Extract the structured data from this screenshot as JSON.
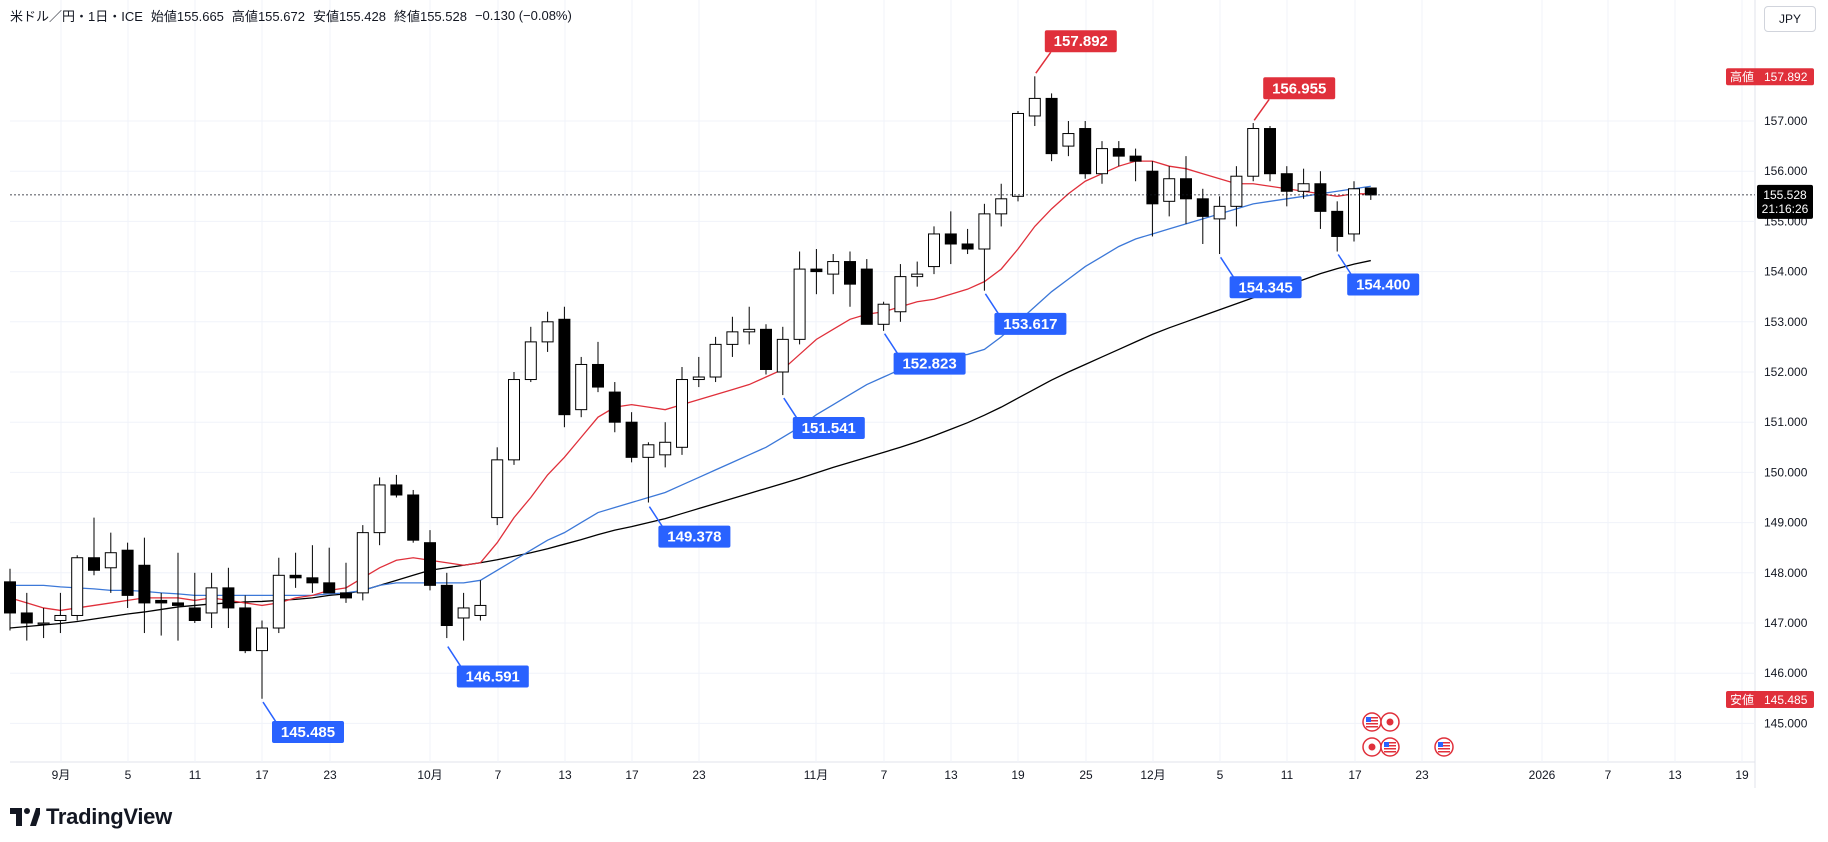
{
  "header": {
    "symbol": "米ドル／円・1日・ICE",
    "open_label": "始値",
    "open": "155.665",
    "high_label": "高値",
    "high": "155.672",
    "low_label": "安値",
    "low": "155.428",
    "close_label": "終値",
    "close": "155.528",
    "change": "−0.130 (−0.08%)"
  },
  "currency_button": "JPY",
  "branding": {
    "name": "TradingView"
  },
  "chart_data": {
    "type": "candlestick",
    "x_axis_labels": [
      "9月",
      "5",
      "11",
      "17",
      "23",
      "10月",
      "7",
      "13",
      "17",
      "23",
      "11月",
      "7",
      "13",
      "19",
      "25",
      "12月",
      "5",
      "11",
      "17",
      "23",
      "2026",
      "7",
      "13",
      "19"
    ],
    "y_ticks": [
      "157.000",
      "156.000",
      "155.000",
      "154.000",
      "153.000",
      "152.000",
      "151.000",
      "150.000",
      "149.000",
      "148.000",
      "147.000",
      "146.000",
      "145.000"
    ],
    "current_price": "155.528",
    "countdown": "21:16:26",
    "axis_high_label": "高値",
    "axis_high_value": "157.892",
    "axis_low_label": "安値",
    "axis_low_value": "145.485",
    "colors": {
      "up_body": "#ffffff",
      "down_body": "#000000",
      "wick": "#000000",
      "ma_short": "#e0303b",
      "ma_mid": "#3c78d8",
      "ma_long": "#000000",
      "callout_high": "#e0303b",
      "callout_low": "#2962ff"
    },
    "candles": [
      {
        "o": 147.82,
        "h": 148.08,
        "l": 146.85,
        "c": 147.2
      },
      {
        "o": 147.2,
        "h": 147.6,
        "l": 146.65,
        "c": 147.0
      },
      {
        "o": 147.0,
        "h": 147.3,
        "l": 146.7,
        "c": 147.0
      },
      {
        "o": 147.05,
        "h": 147.6,
        "l": 146.8,
        "c": 147.15
      },
      {
        "o": 147.15,
        "h": 148.35,
        "l": 147.05,
        "c": 148.3
      },
      {
        "o": 148.3,
        "h": 149.1,
        "l": 147.95,
        "c": 148.05
      },
      {
        "o": 148.1,
        "h": 148.8,
        "l": 147.6,
        "c": 148.4
      },
      {
        "o": 148.45,
        "h": 148.6,
        "l": 147.3,
        "c": 147.55
      },
      {
        "o": 148.15,
        "h": 148.7,
        "l": 146.8,
        "c": 147.4
      },
      {
        "o": 147.45,
        "h": 147.6,
        "l": 146.75,
        "c": 147.4
      },
      {
        "o": 147.4,
        "h": 148.4,
        "l": 146.65,
        "c": 147.35
      },
      {
        "o": 147.3,
        "h": 148.0,
        "l": 147.0,
        "c": 147.05
      },
      {
        "o": 147.2,
        "h": 148.0,
        "l": 146.9,
        "c": 147.7
      },
      {
        "o": 147.7,
        "h": 148.1,
        "l": 146.9,
        "c": 147.3
      },
      {
        "o": 147.3,
        "h": 147.55,
        "l": 146.4,
        "c": 146.45
      },
      {
        "o": 146.45,
        "h": 147.05,
        "l": 145.49,
        "c": 146.9
      },
      {
        "o": 146.9,
        "h": 148.3,
        "l": 146.8,
        "c": 147.95
      },
      {
        "o": 147.95,
        "h": 148.4,
        "l": 147.7,
        "c": 147.9
      },
      {
        "o": 147.9,
        "h": 148.55,
        "l": 147.6,
        "c": 147.8
      },
      {
        "o": 147.8,
        "h": 148.5,
        "l": 147.6,
        "c": 147.6
      },
      {
        "o": 147.6,
        "h": 148.2,
        "l": 147.4,
        "c": 147.5
      },
      {
        "o": 147.6,
        "h": 148.95,
        "l": 147.45,
        "c": 148.8
      },
      {
        "o": 148.8,
        "h": 149.9,
        "l": 148.55,
        "c": 149.75
      },
      {
        "o": 149.75,
        "h": 149.95,
        "l": 149.5,
        "c": 149.55
      },
      {
        "o": 149.55,
        "h": 149.65,
        "l": 148.6,
        "c": 148.65
      },
      {
        "o": 148.6,
        "h": 148.85,
        "l": 147.65,
        "c": 147.75
      },
      {
        "o": 147.75,
        "h": 148.0,
        "l": 146.7,
        "c": 146.95
      },
      {
        "o": 147.1,
        "h": 147.6,
        "l": 146.65,
        "c": 147.3
      },
      {
        "o": 147.15,
        "h": 147.85,
        "l": 147.05,
        "c": 147.35
      },
      {
        "o": 149.1,
        "h": 150.5,
        "l": 148.95,
        "c": 150.25
      },
      {
        "o": 150.25,
        "h": 152.0,
        "l": 150.15,
        "c": 151.85
      },
      {
        "o": 151.85,
        "h": 152.9,
        "l": 151.8,
        "c": 152.6
      },
      {
        "o": 152.6,
        "h": 153.2,
        "l": 152.4,
        "c": 153.0
      },
      {
        "o": 153.05,
        "h": 153.3,
        "l": 150.9,
        "c": 151.15
      },
      {
        "o": 151.25,
        "h": 152.3,
        "l": 151.1,
        "c": 152.15
      },
      {
        "o": 152.15,
        "h": 152.6,
        "l": 151.6,
        "c": 151.7
      },
      {
        "o": 151.6,
        "h": 151.8,
        "l": 150.8,
        "c": 151.0
      },
      {
        "o": 151.0,
        "h": 151.2,
        "l": 150.2,
        "c": 150.3
      },
      {
        "o": 150.3,
        "h": 150.6,
        "l": 149.4,
        "c": 150.55
      },
      {
        "o": 150.35,
        "h": 151.0,
        "l": 150.1,
        "c": 150.6
      },
      {
        "o": 150.5,
        "h": 152.1,
        "l": 150.35,
        "c": 151.85
      },
      {
        "o": 151.85,
        "h": 152.3,
        "l": 151.7,
        "c": 151.9
      },
      {
        "o": 151.9,
        "h": 152.7,
        "l": 151.8,
        "c": 152.55
      },
      {
        "o": 152.55,
        "h": 153.1,
        "l": 152.3,
        "c": 152.8
      },
      {
        "o": 152.8,
        "h": 153.3,
        "l": 152.55,
        "c": 152.85
      },
      {
        "o": 152.85,
        "h": 152.95,
        "l": 151.95,
        "c": 152.05
      },
      {
        "o": 152.0,
        "h": 152.9,
        "l": 151.54,
        "c": 152.65
      },
      {
        "o": 152.65,
        "h": 154.4,
        "l": 152.55,
        "c": 154.05
      },
      {
        "o": 154.05,
        "h": 154.45,
        "l": 153.55,
        "c": 154.0
      },
      {
        "o": 153.95,
        "h": 154.35,
        "l": 153.55,
        "c": 154.2
      },
      {
        "o": 154.2,
        "h": 154.4,
        "l": 153.3,
        "c": 153.75
      },
      {
        "o": 154.05,
        "h": 154.25,
        "l": 153.0,
        "c": 152.95
      },
      {
        "o": 152.95,
        "h": 153.4,
        "l": 152.82,
        "c": 153.35
      },
      {
        "o": 153.2,
        "h": 154.15,
        "l": 153.0,
        "c": 153.9
      },
      {
        "o": 153.9,
        "h": 154.2,
        "l": 153.7,
        "c": 153.95
      },
      {
        "o": 154.1,
        "h": 154.9,
        "l": 153.95,
        "c": 154.75
      },
      {
        "o": 154.75,
        "h": 155.2,
        "l": 154.15,
        "c": 154.55
      },
      {
        "o": 154.55,
        "h": 154.85,
        "l": 154.35,
        "c": 154.45
      },
      {
        "o": 154.45,
        "h": 155.35,
        "l": 153.62,
        "c": 155.15
      },
      {
        "o": 155.15,
        "h": 155.75,
        "l": 154.9,
        "c": 155.45
      },
      {
        "o": 155.5,
        "h": 157.2,
        "l": 155.4,
        "c": 157.15
      },
      {
        "o": 157.1,
        "h": 157.89,
        "l": 156.9,
        "c": 157.45
      },
      {
        "o": 157.45,
        "h": 157.55,
        "l": 156.2,
        "c": 156.35
      },
      {
        "o": 156.5,
        "h": 157.0,
        "l": 156.3,
        "c": 156.75
      },
      {
        "o": 156.85,
        "h": 157.0,
        "l": 155.85,
        "c": 155.95
      },
      {
        "o": 155.95,
        "h": 156.6,
        "l": 155.75,
        "c": 156.45
      },
      {
        "o": 156.45,
        "h": 156.6,
        "l": 156.1,
        "c": 156.3
      },
      {
        "o": 156.3,
        "h": 156.45,
        "l": 155.8,
        "c": 156.2
      },
      {
        "o": 156.0,
        "h": 156.2,
        "l": 154.7,
        "c": 155.35
      },
      {
        "o": 155.4,
        "h": 156.1,
        "l": 155.1,
        "c": 155.85
      },
      {
        "o": 155.85,
        "h": 156.3,
        "l": 154.95,
        "c": 155.45
      },
      {
        "o": 155.45,
        "h": 155.65,
        "l": 154.55,
        "c": 155.1
      },
      {
        "o": 155.05,
        "h": 155.5,
        "l": 154.35,
        "c": 155.3
      },
      {
        "o": 155.3,
        "h": 156.1,
        "l": 154.9,
        "c": 155.9
      },
      {
        "o": 155.9,
        "h": 156.96,
        "l": 155.8,
        "c": 156.85
      },
      {
        "o": 156.85,
        "h": 156.9,
        "l": 155.8,
        "c": 155.95
      },
      {
        "o": 155.95,
        "h": 156.1,
        "l": 155.3,
        "c": 155.6
      },
      {
        "o": 155.6,
        "h": 156.05,
        "l": 155.45,
        "c": 155.75
      },
      {
        "o": 155.75,
        "h": 156.0,
        "l": 154.85,
        "c": 155.2
      },
      {
        "o": 155.2,
        "h": 155.4,
        "l": 154.4,
        "c": 154.7
      },
      {
        "o": 154.75,
        "h": 155.8,
        "l": 154.6,
        "c": 155.65
      },
      {
        "o": 155.665,
        "h": 155.672,
        "l": 155.428,
        "c": 155.528
      }
    ],
    "ma_short": [
      147.5,
      147.4,
      147.3,
      147.25,
      147.3,
      147.35,
      147.4,
      147.45,
      147.5,
      147.5,
      147.5,
      147.45,
      147.5,
      147.45,
      147.4,
      147.35,
      147.4,
      147.5,
      147.55,
      147.65,
      147.7,
      147.9,
      148.1,
      148.25,
      148.3,
      148.25,
      148.2,
      148.15,
      148.2,
      148.6,
      149.1,
      149.5,
      149.95,
      150.3,
      150.7,
      151.1,
      151.3,
      151.35,
      151.3,
      151.25,
      151.35,
      151.45,
      151.55,
      151.65,
      151.75,
      151.9,
      152.05,
      152.35,
      152.65,
      152.85,
      153.05,
      153.15,
      153.2,
      153.3,
      153.4,
      153.45,
      153.55,
      153.65,
      153.8,
      154.05,
      154.45,
      154.9,
      155.25,
      155.55,
      155.8,
      155.95,
      156.1,
      156.2,
      156.2,
      156.1,
      156.05,
      155.95,
      155.85,
      155.75,
      155.75,
      155.7,
      155.65,
      155.6,
      155.55,
      155.5,
      155.55,
      155.55
    ],
    "ma_mid": [
      147.75,
      147.75,
      147.75,
      147.72,
      147.7,
      147.68,
      147.65,
      147.65,
      147.63,
      147.6,
      147.58,
      147.55,
      147.55,
      147.55,
      147.55,
      147.55,
      147.55,
      147.55,
      147.55,
      147.58,
      147.6,
      147.65,
      147.75,
      147.8,
      147.8,
      147.8,
      147.8,
      147.8,
      147.85,
      148.05,
      148.25,
      148.45,
      148.65,
      148.8,
      149.0,
      149.2,
      149.3,
      149.4,
      149.5,
      149.6,
      149.75,
      149.9,
      150.05,
      150.2,
      150.35,
      150.5,
      150.7,
      150.9,
      151.15,
      151.35,
      151.55,
      151.75,
      151.9,
      152.05,
      152.15,
      152.25,
      152.3,
      152.35,
      152.45,
      152.7,
      153.0,
      153.3,
      153.6,
      153.85,
      154.1,
      154.3,
      154.5,
      154.65,
      154.75,
      154.85,
      154.95,
      155.05,
      155.15,
      155.25,
      155.35,
      155.4,
      155.45,
      155.5,
      155.55,
      155.6,
      155.65,
      155.7
    ],
    "ma_long": [
      146.9,
      146.93,
      146.96,
      146.99,
      147.03,
      147.08,
      147.13,
      147.18,
      147.22,
      147.27,
      147.32,
      147.35,
      147.38,
      147.4,
      147.42,
      147.43,
      147.45,
      147.47,
      147.5,
      147.55,
      147.58,
      147.65,
      147.75,
      147.85,
      147.95,
      148.05,
      148.1,
      148.15,
      148.2,
      148.26,
      148.33,
      148.4,
      148.48,
      148.57,
      148.66,
      148.76,
      148.85,
      148.92,
      149.0,
      149.08,
      149.18,
      149.28,
      149.38,
      149.48,
      149.58,
      149.68,
      149.78,
      149.88,
      149.99,
      150.1,
      150.2,
      150.3,
      150.4,
      150.5,
      150.61,
      150.73,
      150.86,
      150.99,
      151.14,
      151.3,
      151.48,
      151.66,
      151.84,
      152.0,
      152.15,
      152.3,
      152.45,
      152.6,
      152.75,
      152.88,
      153.0,
      153.12,
      153.24,
      153.36,
      153.48,
      153.6,
      153.72,
      153.84,
      153.96,
      154.06,
      154.15,
      154.22
    ],
    "callouts": [
      {
        "label": "157.892",
        "price": 157.892,
        "index": 61,
        "side": "high"
      },
      {
        "label": "156.955",
        "price": 156.955,
        "index": 74,
        "side": "high"
      },
      {
        "label": "145.485",
        "price": 145.485,
        "index": 15,
        "side": "low"
      },
      {
        "label": "146.591",
        "price": 146.591,
        "index": 26,
        "side": "low"
      },
      {
        "label": "149.378",
        "price": 149.378,
        "index": 38,
        "side": "low"
      },
      {
        "label": "151.541",
        "price": 151.541,
        "index": 46,
        "side": "low"
      },
      {
        "label": "152.823",
        "price": 152.823,
        "index": 52,
        "side": "low"
      },
      {
        "label": "153.617",
        "price": 153.617,
        "index": 58,
        "side": "low"
      },
      {
        "label": "154.345",
        "price": 154.345,
        "index": 72,
        "side": "low"
      },
      {
        "label": "154.400",
        "price": 154.4,
        "index": 79,
        "side": "low"
      }
    ],
    "events": [
      {
        "row": 0,
        "slot": 0,
        "icon": "us-flag-icon"
      },
      {
        "row": 0,
        "slot": 1,
        "icon": "jp-flag-icon"
      },
      {
        "row": 1,
        "slot": 0,
        "icon": "jp-flag-icon"
      },
      {
        "row": 1,
        "slot": 1,
        "icon": "us-flag-icon"
      },
      {
        "row": 1,
        "slot": 4,
        "icon": "us-flag-icon"
      }
    ]
  }
}
